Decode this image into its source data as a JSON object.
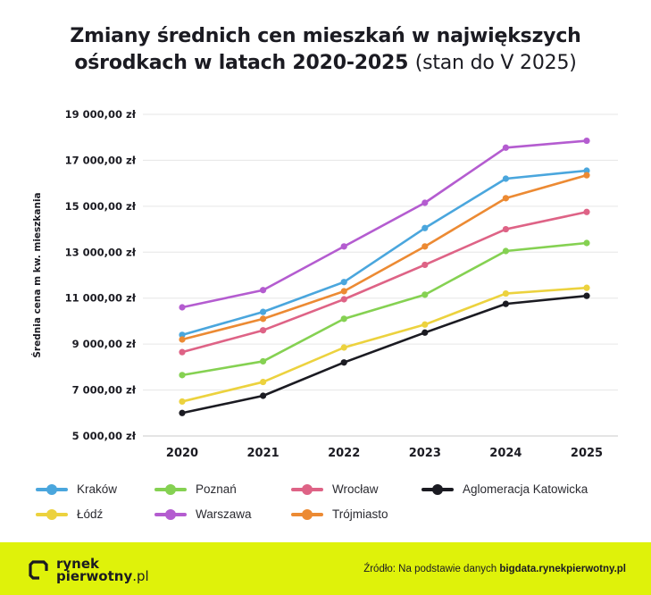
{
  "title": {
    "line1": "Zmiany średnich cen mieszkań w największych",
    "line2_bold": "ośrodkach w latach 2020-2025",
    "line2_light": "(stan do V 2025)"
  },
  "footer": {
    "logo_line1": "rynek",
    "logo_line2": "pierwotny",
    "logo_suffix": ".pl",
    "source_prefix": "Źródło: Na podstawie danych",
    "source_link": "bigdata.rynekpierwotny.pl",
    "background": "#dff20a"
  },
  "chart_data": {
    "type": "line",
    "title": "Zmiany średnich cen mieszkań w największych ośrodkach w latach 2020-2025 (stan do V 2025)",
    "xlabel": "",
    "ylabel": "Średnia cena m kw. mieszkania",
    "categories": [
      "2020",
      "2021",
      "2022",
      "2023",
      "2024",
      "2025"
    ],
    "ylim": [
      5000,
      19000
    ],
    "yticks": [
      5000,
      7000,
      9000,
      11000,
      13000,
      15000,
      17000,
      19000
    ],
    "ytick_labels": [
      "5 000,00 zł",
      "7 000,00 zł",
      "9 000,00 zł",
      "11 000,00 zł",
      "13 000,00 zł",
      "15 000,00 zł",
      "17 000,00 zł",
      "19 000,00 zł"
    ],
    "grid": true,
    "legend_position": "bottom",
    "series": [
      {
        "name": "Kraków",
        "color": "#4aa6dd",
        "values": [
          9400,
          10400,
          11700,
          14050,
          16200,
          16550
        ]
      },
      {
        "name": "Poznań",
        "color": "#85d152",
        "values": [
          7650,
          8250,
          10100,
          11150,
          13050,
          13400
        ]
      },
      {
        "name": "Wrocław",
        "color": "#de6386",
        "values": [
          8650,
          9600,
          10950,
          12450,
          14000,
          14750
        ]
      },
      {
        "name": "Aglomeracja Katowicka",
        "color": "#1b1b22",
        "values": [
          6000,
          6750,
          8200,
          9500,
          10750,
          11100
        ]
      },
      {
        "name": "Łódź",
        "color": "#ecd23e",
        "values": [
          6500,
          7350,
          8850,
          9850,
          11200,
          11450
        ]
      },
      {
        "name": "Warszawa",
        "color": "#b45cd0",
        "values": [
          10600,
          11350,
          13250,
          15150,
          17550,
          17850
        ]
      },
      {
        "name": "Trójmiasto",
        "color": "#ec8a33",
        "values": [
          9200,
          10100,
          11300,
          13250,
          15350,
          16350
        ]
      }
    ]
  }
}
